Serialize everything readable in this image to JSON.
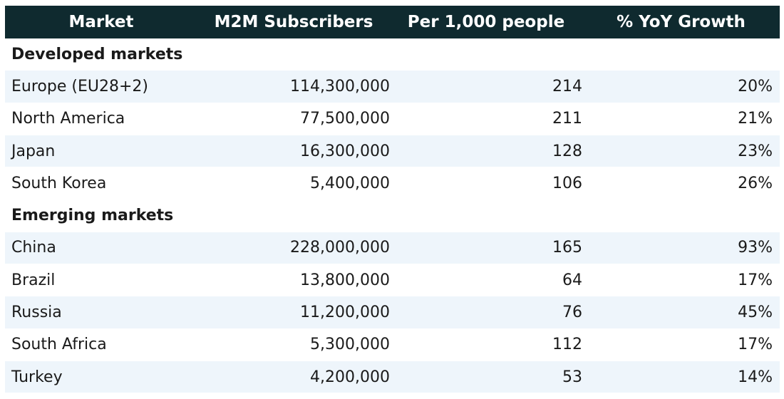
{
  "header": {
    "market": "Market",
    "subscribers": "M2M Subscribers",
    "per_thousand": "Per 1,000 people",
    "growth": "% YoY Growth"
  },
  "sections": [
    {
      "title": "Developed markets",
      "rows": [
        {
          "market": "Europe (EU28+2)",
          "subscribers": "114,300,000",
          "per_thousand": "214",
          "growth": "20%"
        },
        {
          "market": "North America",
          "subscribers": "77,500,000",
          "per_thousand": "211",
          "growth": "21%"
        },
        {
          "market": "Japan",
          "subscribers": "16,300,000",
          "per_thousand": "128",
          "growth": "23%"
        },
        {
          "market": "South Korea",
          "subscribers": "5,400,000",
          "per_thousand": "106",
          "growth": "26%"
        }
      ]
    },
    {
      "title": "Emerging markets",
      "rows": [
        {
          "market": "China",
          "subscribers": "228,000,000",
          "per_thousand": "165",
          "growth": "93%"
        },
        {
          "market": "Brazil",
          "subscribers": "13,800,000",
          "per_thousand": "64",
          "growth": "17%"
        },
        {
          "market": "Russia",
          "subscribers": "11,200,000",
          "per_thousand": "76",
          "growth": "45%"
        },
        {
          "market": "South Africa",
          "subscribers": "5,300,000",
          "per_thousand": "112",
          "growth": "17%"
        },
        {
          "market": "Turkey",
          "subscribers": "4,200,000",
          "per_thousand": "53",
          "growth": "14%"
        }
      ]
    }
  ],
  "colors": {
    "header_bg": "#0f2a2f",
    "header_text": "#ffffff",
    "row_shade": "#eef5fb",
    "row_plain": "#ffffff"
  }
}
